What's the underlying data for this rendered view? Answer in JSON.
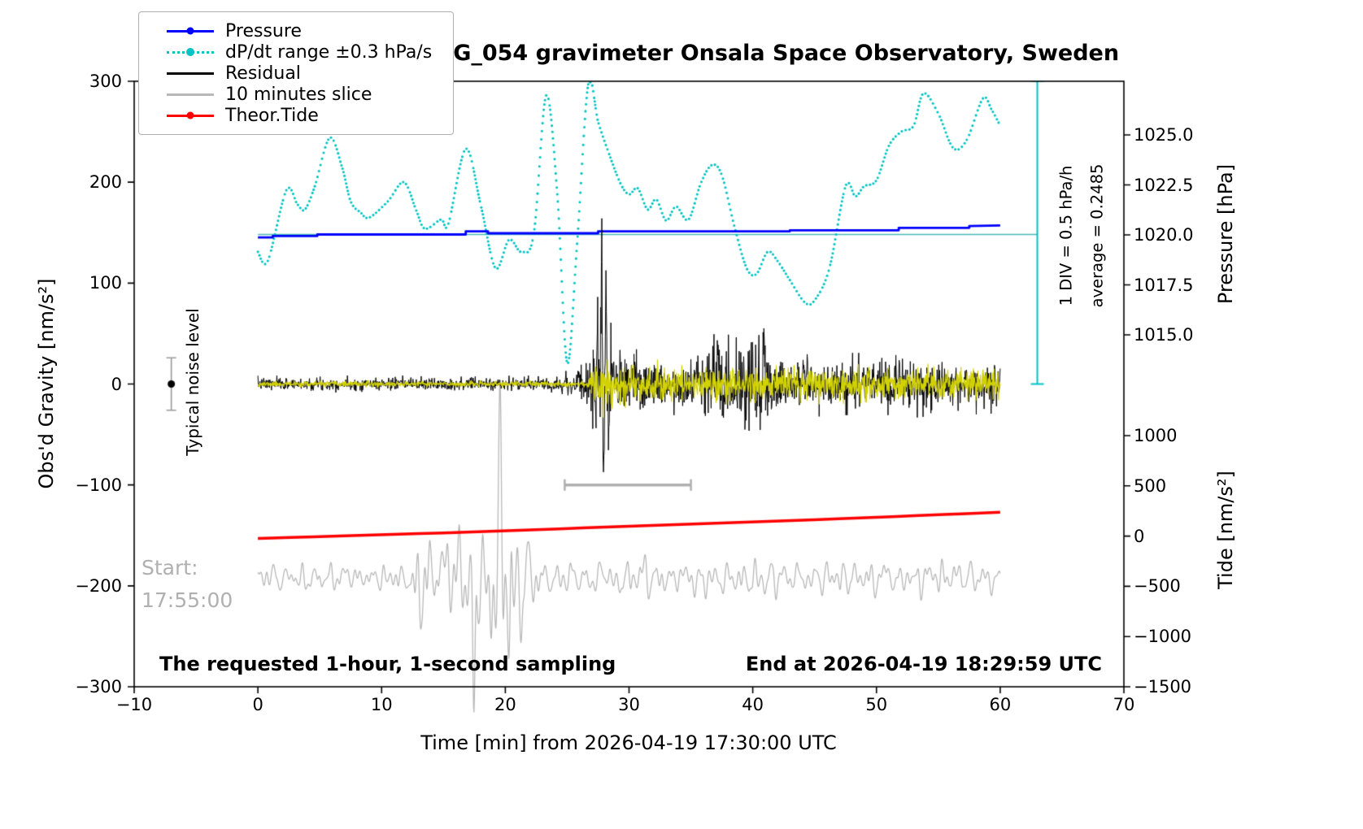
{
  "chart_data": {
    "type": "line",
    "title": "SCG_054 gravimeter Onsala Space Observatory, Sweden",
    "xlabel": "Time [min] from 2026-04-19 17:30:00 UTC",
    "ylabel_left": "Obs'd Gravity [nm/s²]",
    "ylabel_pressure": "Pressure [hPa]",
    "ylabel_tide": "Tide [nm/s²]",
    "xlim": [
      -10,
      70
    ],
    "ylim_left": [
      -300,
      300
    ],
    "x_ticks": [
      -10,
      0,
      10,
      20,
      30,
      40,
      50,
      60,
      70
    ],
    "y_ticks_left": [
      300,
      200,
      100,
      0,
      -100,
      -200,
      -300
    ],
    "pressure_ticks": [
      1025.0,
      1022.5,
      1020.0,
      1017.5,
      1015.0
    ],
    "tide_ticks": [
      1000,
      500,
      0,
      -500,
      -1000,
      -1500
    ],
    "grid": false,
    "legend_position": "upper-left",
    "colors": {
      "pressure": "#0000ff",
      "dpdt": "#00c3c3",
      "residual": "#000000",
      "slice": "#b8b8b8",
      "tide": "#ff0000",
      "filtered": "#d2d200",
      "average_line": "#49b8b8",
      "annotation_gray": "#b0b0b0"
    },
    "legend": [
      {
        "label": "Pressure",
        "color": "#0000ff",
        "line": "solid",
        "dot": true
      },
      {
        "label": "dP/dt range ±0.3 hPa/s",
        "color": "#00c3c3",
        "line": "dotted",
        "dot": true
      },
      {
        "label": "Residual",
        "color": "#000000",
        "line": "solid",
        "dot": false
      },
      {
        "label": "10 minutes slice",
        "color": "#b8b8b8",
        "line": "solid",
        "dot": false
      },
      {
        "label": "Theor.Tide",
        "color": "#ff0000",
        "line": "solid",
        "dot": true
      }
    ],
    "annotations": {
      "noise_level_label": "Typical noise level",
      "start_label": "Start:",
      "start_time": "17:55:00",
      "bottom_left": "The requested 1-hour, 1-second sampling",
      "bottom_right": "End at 2026-04-19 18:29:59 UTC",
      "div_scale": "1 DIV = 0.5 hPa/h",
      "average": "average = 0.2485"
    },
    "series": {
      "dpdt_left_units": [
        [
          0,
          131
        ],
        [
          0.8,
          122
        ],
        [
          2.3,
          192
        ],
        [
          3.2,
          178
        ],
        [
          3.8,
          173
        ],
        [
          4.6,
          196
        ],
        [
          5.8,
          244
        ],
        [
          6.8,
          215
        ],
        [
          7.5,
          181
        ],
        [
          8.3,
          170
        ],
        [
          9,
          165
        ],
        [
          10.5,
          181
        ],
        [
          11.8,
          200
        ],
        [
          12.8,
          172
        ],
        [
          13.5,
          154
        ],
        [
          14.8,
          163
        ],
        [
          15.4,
          159
        ],
        [
          16.8,
          233
        ],
        [
          18,
          178
        ],
        [
          19.2,
          115
        ],
        [
          20.3,
          143
        ],
        [
          21.3,
          131
        ],
        [
          22.3,
          149
        ],
        [
          23.3,
          286
        ],
        [
          24.2,
          188
        ],
        [
          25,
          21
        ],
        [
          25.8,
          139
        ],
        [
          26.7,
          297
        ],
        [
          27.5,
          260
        ],
        [
          28.3,
          231
        ],
        [
          29.3,
          199
        ],
        [
          30,
          188
        ],
        [
          30.7,
          194
        ],
        [
          31.5,
          173
        ],
        [
          32.2,
          183
        ],
        [
          33,
          162
        ],
        [
          33.8,
          176
        ],
        [
          34.8,
          163
        ],
        [
          35.8,
          199
        ],
        [
          36.7,
          217
        ],
        [
          37.5,
          207
        ],
        [
          38.5,
          157
        ],
        [
          39.5,
          115
        ],
        [
          40.3,
          109
        ],
        [
          41.2,
          131
        ],
        [
          42,
          122
        ],
        [
          43,
          103
        ],
        [
          44.2,
          81
        ],
        [
          45,
          83
        ],
        [
          46.2,
          115
        ],
        [
          47.5,
          196
        ],
        [
          48.3,
          186
        ],
        [
          49,
          196
        ],
        [
          50,
          202
        ],
        [
          51,
          236
        ],
        [
          52,
          250
        ],
        [
          53,
          256
        ],
        [
          53.8,
          288
        ],
        [
          55,
          268
        ],
        [
          56.2,
          234
        ],
        [
          57.3,
          242
        ],
        [
          58.6,
          283
        ],
        [
          59.3,
          272
        ],
        [
          60,
          256
        ]
      ],
      "pressure_hpa_steps": [
        [
          0,
          1019.85
        ],
        [
          1.2,
          1019.85
        ],
        [
          1.2,
          1019.92
        ],
        [
          4.8,
          1019.92
        ],
        [
          4.8,
          1020.0
        ],
        [
          16.8,
          1020.0
        ],
        [
          16.8,
          1020.16
        ],
        [
          18.6,
          1020.16
        ],
        [
          18.6,
          1020.06
        ],
        [
          27.5,
          1020.06
        ],
        [
          27.5,
          1020.16
        ],
        [
          43,
          1020.16
        ],
        [
          43,
          1020.21
        ],
        [
          51.8,
          1020.21
        ],
        [
          51.8,
          1020.33
        ],
        [
          57.5,
          1020.33
        ],
        [
          57.5,
          1020.42
        ],
        [
          60,
          1020.45
        ]
      ],
      "pressure_ref_hpa": 1020,
      "pressure_ref_left_units": 148.2,
      "pressure_left_units_per_hpa": 19.8,
      "theor_tide_left_units": [
        [
          0,
          -153
        ],
        [
          15,
          -147.5
        ],
        [
          30,
          -141
        ],
        [
          45,
          -134.5
        ],
        [
          60,
          -127
        ]
      ],
      "residual": {
        "seed": 7,
        "sigma_envelope": [
          [
            0,
            3
          ],
          [
            24,
            3
          ],
          [
            24.6,
            5
          ],
          [
            25.5,
            7
          ],
          [
            26.9,
            11
          ],
          [
            27.3,
            26
          ],
          [
            27.8,
            36
          ],
          [
            28.3,
            28
          ],
          [
            28.9,
            15
          ],
          [
            29.6,
            13
          ],
          [
            31,
            12
          ],
          [
            33,
            11
          ],
          [
            35,
            11
          ],
          [
            36.5,
            16
          ],
          [
            37.4,
            20
          ],
          [
            38.4,
            16
          ],
          [
            39.4,
            18
          ],
          [
            40.6,
            21
          ],
          [
            41.5,
            16
          ],
          [
            42.5,
            12
          ],
          [
            43.5,
            13
          ],
          [
            44.5,
            15
          ],
          [
            45.5,
            11
          ],
          [
            47,
            11
          ],
          [
            49,
            11
          ],
          [
            51,
            11
          ],
          [
            53,
            12
          ],
          [
            55,
            11
          ],
          [
            57,
            10
          ],
          [
            58.5,
            11
          ],
          [
            60,
            10
          ]
        ],
        "spikes": [
          [
            27.5,
            55
          ],
          [
            27.78,
            112
          ],
          [
            27.95,
            -142
          ],
          [
            28.12,
            62
          ],
          [
            28.32,
            -52
          ],
          [
            37.2,
            40
          ],
          [
            40.9,
            44
          ],
          [
            44.4,
            30
          ]
        ]
      },
      "residual_filtered_yellow": {
        "seed": 11,
        "sigma_envelope": [
          [
            0,
            1.2
          ],
          [
            26.6,
            1.2
          ],
          [
            27.2,
            9
          ],
          [
            28,
            13
          ],
          [
            29,
            10
          ],
          [
            31,
            9
          ],
          [
            34,
            8
          ],
          [
            38,
            8.5
          ],
          [
            42,
            7.5
          ],
          [
            46,
            7
          ],
          [
            50,
            7.5
          ],
          [
            55,
            7
          ],
          [
            60,
            7
          ]
        ],
        "spikes": []
      },
      "slice_10min": {
        "seed": 5,
        "baseline": -192,
        "components": [
          [
            1.15,
            0.5,
            1.3
          ],
          [
            0.47,
            0.35,
            4.0
          ],
          [
            0.73,
            0.3,
            2.2
          ]
        ],
        "amp_envelope": [
          [
            0,
            11
          ],
          [
            11.5,
            11
          ],
          [
            12.3,
            22
          ],
          [
            13,
            40
          ],
          [
            13.6,
            30
          ],
          [
            14.5,
            28
          ],
          [
            15.2,
            35
          ],
          [
            16.2,
            45
          ],
          [
            16.9,
            38
          ],
          [
            17.4,
            80
          ],
          [
            18,
            55
          ],
          [
            18.7,
            60
          ],
          [
            19.4,
            80
          ],
          [
            20.1,
            85
          ],
          [
            20.8,
            55
          ],
          [
            21.4,
            55
          ],
          [
            22.2,
            30
          ],
          [
            23,
            15
          ],
          [
            24,
            13
          ],
          [
            28,
            13
          ],
          [
            31,
            17
          ],
          [
            33,
            15
          ],
          [
            36,
            16
          ],
          [
            39,
            14
          ],
          [
            42,
            15
          ],
          [
            45,
            13
          ],
          [
            48,
            16
          ],
          [
            51,
            14
          ],
          [
            54,
            15
          ],
          [
            57,
            14
          ],
          [
            60,
            13
          ]
        ],
        "events": [
          [
            13.1,
            -40,
            0.08
          ],
          [
            16.3,
            40,
            0.1
          ],
          [
            17.45,
            -120,
            0.09
          ],
          [
            18.9,
            -55,
            0.09
          ],
          [
            19.55,
            85,
            0.12
          ],
          [
            20.3,
            -70,
            0.1
          ]
        ]
      },
      "average_line": {
        "value_left_units": 148.2,
        "x_from": 0,
        "x_to": 63
      },
      "pressure_scale_bar": {
        "x": 63,
        "from_left_units": 0,
        "to_left_units": 300
      },
      "noise_marker": {
        "x": -7,
        "value": 0,
        "half_range": 26
      },
      "slice_duration_bar": {
        "x_from": 24.8,
        "x_to": 35,
        "value_left_units": -100
      }
    }
  }
}
